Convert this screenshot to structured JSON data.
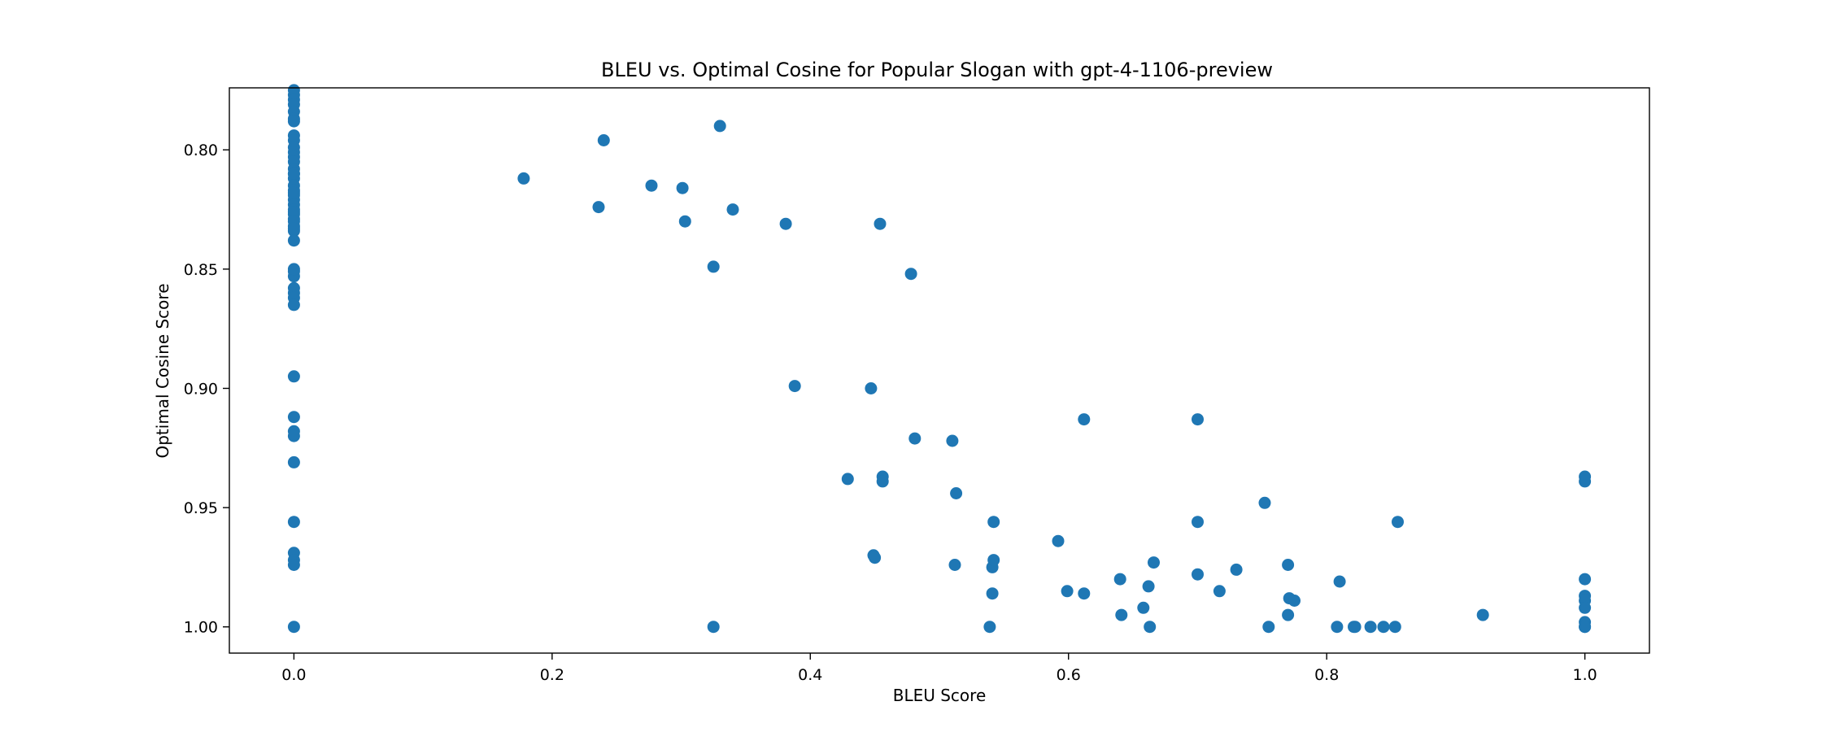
{
  "chart_data": {
    "type": "scatter",
    "title": "BLEU vs. Optimal Cosine for Popular Slogan with gpt-4-1106-preview",
    "xlabel": "BLEU Score",
    "ylabel": "Optimal Cosine Score",
    "xlim": [
      -0.05,
      1.05
    ],
    "ylim": [
      1.011,
      0.774
    ],
    "y_inverted": true,
    "grid": false,
    "x_ticks": [
      "0.0",
      "0.2",
      "0.4",
      "0.6",
      "0.8",
      "1.0"
    ],
    "y_ticks": [
      "0.80",
      "0.85",
      "0.90",
      "0.95",
      "1.00"
    ],
    "x_tick_values": [
      0.0,
      0.2,
      0.4,
      0.6,
      0.8,
      1.0
    ],
    "y_tick_values": [
      0.8,
      0.85,
      0.9,
      0.95,
      1.0
    ],
    "marker_color": "#1f77b4",
    "x": [
      0.0,
      0.0,
      0.0,
      0.0,
      0.0,
      0.0,
      0.0,
      0.0,
      0.0,
      0.0,
      0.0,
      0.0,
      0.0,
      0.0,
      0.0,
      0.0,
      0.0,
      0.0,
      0.0,
      0.0,
      0.0,
      0.0,
      0.0,
      0.0,
      0.0,
      0.0,
      0.0,
      0.0,
      0.0,
      0.0,
      0.0,
      0.0,
      0.0,
      0.0,
      0.0,
      0.0,
      0.0,
      0.0,
      0.0,
      0.0,
      0.0,
      0.0,
      0.0,
      0.0,
      0.0,
      0.0,
      0.0,
      0.0,
      0.0,
      0.178,
      0.236,
      0.24,
      0.277,
      0.301,
      0.303,
      0.325,
      0.33,
      0.34,
      0.381,
      0.388,
      0.429,
      0.447,
      0.449,
      0.45,
      0.454,
      0.456,
      0.456,
      0.478,
      0.481,
      0.51,
      0.512,
      0.513,
      0.539,
      0.541,
      0.541,
      0.542,
      0.542,
      0.592,
      0.599,
      0.612,
      0.612,
      0.64,
      0.641,
      0.658,
      0.662,
      0.663,
      0.666,
      0.7,
      0.7,
      0.7,
      0.717,
      0.73,
      0.752,
      0.755,
      0.77,
      0.77,
      0.771,
      0.775,
      0.808,
      0.81,
      0.821,
      0.822,
      0.834,
      0.844,
      0.853,
      0.855,
      0.921,
      1.0,
      1.0,
      1.0,
      1.0,
      1.0,
      1.0,
      1.0,
      1.0,
      1.0,
      0.325
    ],
    "y": [
      0.775,
      0.777,
      0.779,
      0.781,
      0.784,
      0.787,
      0.788,
      0.794,
      0.796,
      0.799,
      0.801,
      0.803,
      0.805,
      0.808,
      0.81,
      0.812,
      0.815,
      0.817,
      0.819,
      0.821,
      0.823,
      0.825,
      0.827,
      0.829,
      0.832,
      0.834,
      0.838,
      0.851,
      0.853,
      0.858,
      0.86,
      0.862,
      0.865,
      0.895,
      0.912,
      0.918,
      0.92,
      0.931,
      0.956,
      0.969,
      0.972,
      0.974,
      1.0,
      0.85,
      0.81,
      0.818,
      0.826,
      0.83,
      0.833,
      0.812,
      0.824,
      0.796,
      0.815,
      0.816,
      0.83,
      0.849,
      0.79,
      0.825,
      0.831,
      0.899,
      0.938,
      0.9,
      0.97,
      0.971,
      0.831,
      0.937,
      0.939,
      0.852,
      0.921,
      0.922,
      0.974,
      0.944,
      1.0,
      0.986,
      0.975,
      0.956,
      0.972,
      0.964,
      0.985,
      0.986,
      0.913,
      0.98,
      0.995,
      0.992,
      0.983,
      1.0,
      0.973,
      0.978,
      0.956,
      0.913,
      0.985,
      0.976,
      0.948,
      1.0,
      0.974,
      0.995,
      0.988,
      0.989,
      1.0,
      0.981,
      1.0,
      1.0,
      1.0,
      1.0,
      1.0,
      0.956,
      0.995,
      0.937,
      0.939,
      0.98,
      0.987,
      0.989,
      0.992,
      0.998,
      1.0,
      1.0,
      1.0
    ]
  }
}
